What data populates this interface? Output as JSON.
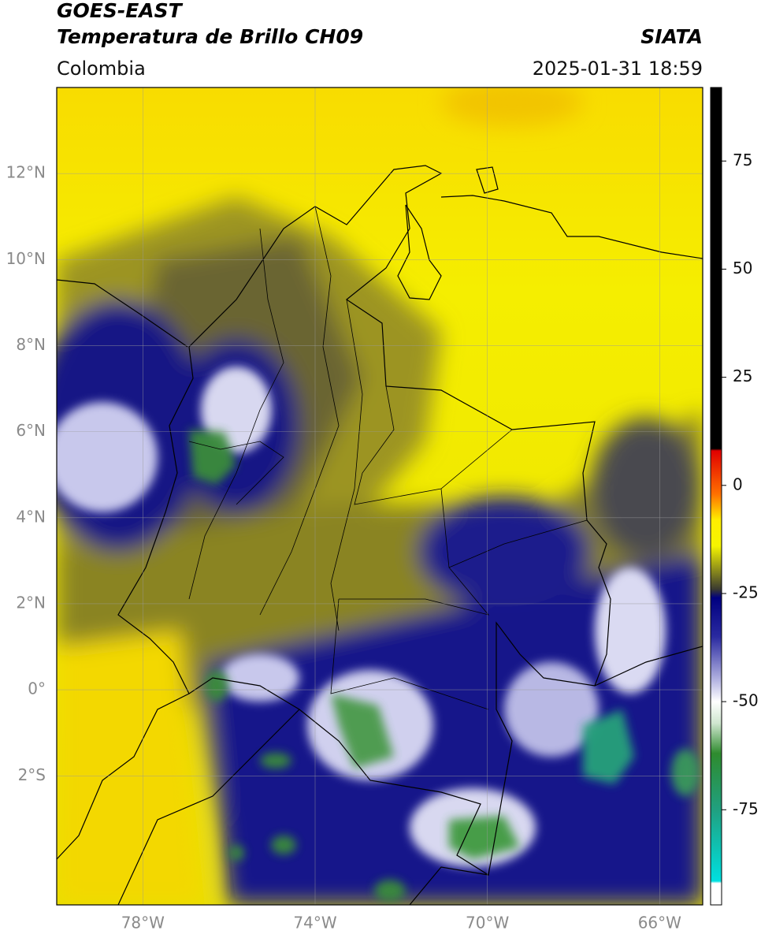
{
  "header": {
    "title": "GOES-EAST",
    "subtitle": "Temperatura de Brillo CH09",
    "source": "SIATA",
    "region": "Colombia",
    "datetime": "2025-01-31 18:59"
  },
  "map": {
    "xlim": [
      -80,
      -65
    ],
    "ylim": [
      -5,
      14
    ],
    "grid": true,
    "xticks": [
      {
        "value": -78,
        "label": "78°W"
      },
      {
        "value": -74,
        "label": "74°W"
      },
      {
        "value": -70,
        "label": "70°W"
      },
      {
        "value": -66,
        "label": "66°W"
      }
    ],
    "yticks": [
      {
        "value": 12,
        "label": "12°N"
      },
      {
        "value": 10,
        "label": "10°N"
      },
      {
        "value": 8,
        "label": "8°N"
      },
      {
        "value": 6,
        "label": "6°N"
      },
      {
        "value": 4,
        "label": "4°N"
      },
      {
        "value": 2,
        "label": "2°N"
      },
      {
        "value": 0,
        "label": "0°"
      },
      {
        "value": -2,
        "label": "2°S"
      }
    ]
  },
  "colorbar": {
    "lim": [
      -97,
      92
    ],
    "ticks": [
      75,
      50,
      25,
      0,
      -25,
      -50,
      -75
    ],
    "stops": [
      [
        92,
        "#000000"
      ],
      [
        8.5,
        "#000000"
      ],
      [
        8,
        "#e00000"
      ],
      [
        -2,
        "#ff7000"
      ],
      [
        -8,
        "#ffee00"
      ],
      [
        -14,
        "#f5f500"
      ],
      [
        -24,
        "#3a3a30"
      ],
      [
        -26,
        "#000080"
      ],
      [
        -35,
        "#2a2aa0"
      ],
      [
        -45,
        "#b4b4e2"
      ],
      [
        -50,
        "#ffffff"
      ],
      [
        -55,
        "#cfe6cf"
      ],
      [
        -62,
        "#2e8b2e"
      ],
      [
        -75,
        "#20a080"
      ],
      [
        -91.5,
        "#00e0e0"
      ],
      [
        -92,
        "#ffffff"
      ],
      [
        -97,
        "#ffffff"
      ]
    ]
  }
}
